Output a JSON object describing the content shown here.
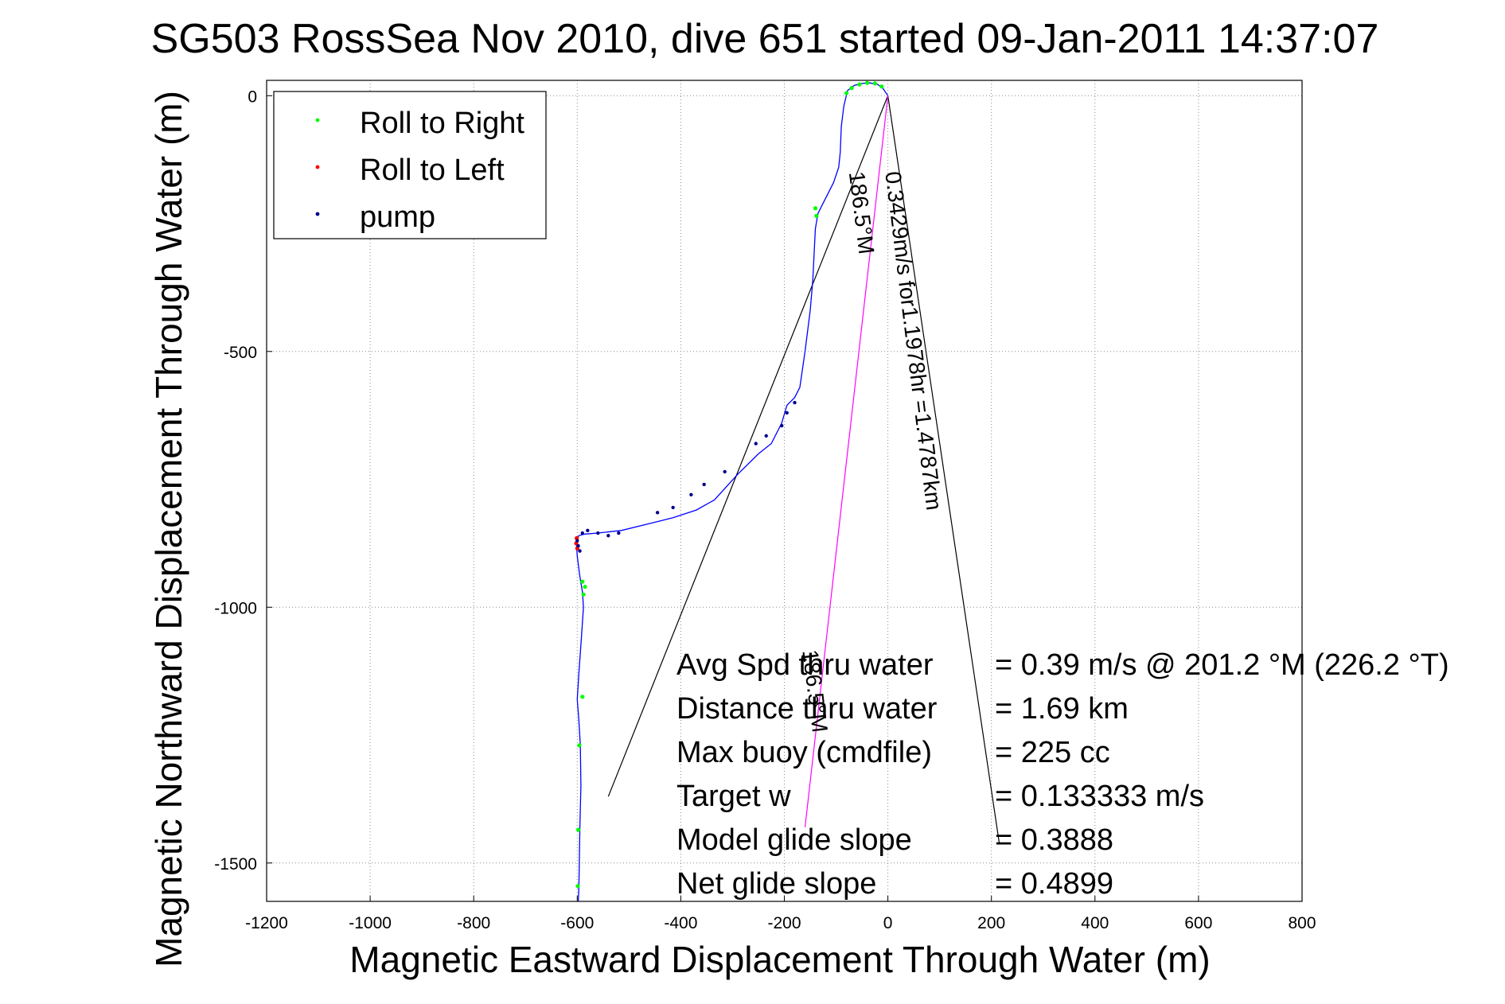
{
  "chart_data": {
    "type": "line",
    "title": "SG503 RossSea Nov 2010, dive 651 started 09-Jan-2011 14:37:07",
    "xlabel": "Magnetic Eastward Displacement Through Water (m)",
    "ylabel": "Magnetic Northward Displacement Through Water (m)",
    "xlim": [
      -1200,
      800
    ],
    "ylim": [
      -1575,
      30
    ],
    "x_ticks": [
      -1200,
      -1000,
      -800,
      -600,
      -400,
      -200,
      0,
      200,
      400,
      600,
      800
    ],
    "y_ticks": [
      0,
      -500,
      -1000,
      -1500
    ],
    "grid": true,
    "legend_position": "top-left",
    "legend": [
      {
        "label": "Roll to Right",
        "color": "#00ff00"
      },
      {
        "label": "Roll to Left",
        "color": "#ff0000"
      },
      {
        "label": "pump",
        "color": "#00008b"
      }
    ],
    "track": {
      "color": "#0000ff",
      "x": [
        0,
        -10,
        -20,
        -35,
        -50,
        -65,
        -78,
        -85,
        -90,
        -92,
        -95,
        -105,
        -120,
        -135,
        -140,
        -142,
        -145,
        -150,
        -160,
        -170,
        -180,
        -195,
        -205,
        -225,
        -250,
        -290,
        -335,
        -370,
        -415,
        -455,
        -515,
        -560,
        -585,
        -597,
        -602,
        -600,
        -595,
        -590,
        -588,
        -592,
        -597,
        -600,
        -597,
        -594,
        -593,
        -595,
        -596,
        -597,
        -598
      ],
      "y": [
        0,
        15,
        22,
        25,
        24,
        20,
        10,
        -20,
        -60,
        -110,
        -140,
        -170,
        -200,
        -230,
        -260,
        -300,
        -360,
        -420,
        -500,
        -570,
        -590,
        -605,
        -640,
        -680,
        -700,
        -740,
        -790,
        -810,
        -825,
        -835,
        -850,
        -855,
        -857,
        -860,
        -870,
        -900,
        -940,
        -970,
        -1000,
        -1060,
        -1130,
        -1180,
        -1220,
        -1270,
        -1350,
        -1430,
        -1500,
        -1550,
        -1575
      ]
    },
    "roll_right_points": {
      "x": [
        -80,
        -70,
        -55,
        -40,
        -25,
        -12,
        -140,
        -138,
        -590,
        -585,
        -588,
        -590,
        -596,
        -598,
        -599
      ],
      "y": [
        5,
        15,
        22,
        25,
        24,
        18,
        -220,
        -235,
        -950,
        -960,
        -975,
        -1175,
        -1270,
        -1435,
        -1545
      ]
    },
    "roll_left_points": {
      "x": [
        -601,
        -602,
        -600
      ],
      "y": [
        -865,
        -875,
        -885
      ]
    },
    "pump_points": {
      "x": [
        -600,
        -598,
        -595,
        -590,
        -580,
        -560,
        -540,
        -520,
        -445,
        -415,
        -380,
        -355,
        -315,
        -255,
        -235,
        -205,
        -195,
        -180
      ],
      "y": [
        -870,
        -880,
        -890,
        -855,
        -850,
        -855,
        -860,
        -855,
        -815,
        -805,
        -780,
        -760,
        -735,
        -680,
        -665,
        -645,
        -620,
        -600
      ]
    },
    "current_line": {
      "color": "#ff00ff",
      "x": [
        0,
        -160
      ],
      "y": [
        0,
        -1430
      ]
    },
    "cone_lines": [
      {
        "color": "#000000",
        "x": [
          0,
          -540
        ],
        "y": [
          0,
          -1370
        ]
      },
      {
        "color": "#000000",
        "x": [
          0,
          215
        ],
        "y": [
          0,
          -1460
        ]
      }
    ],
    "annotations": [
      {
        "text": "0.3429m/s for1.1978hr =1.4787km",
        "x": -5,
        "y": -150,
        "angle": 83
      },
      {
        "text": "186.5°M",
        "x": -75,
        "y": -150,
        "angle": 83
      },
      {
        "text": "186.5°M",
        "x": -165,
        "y": -1085,
        "angle": 83
      }
    ],
    "stats": [
      {
        "label": "Avg Spd thru water",
        "value": "=  0.39 m/s @ 201.2 °M (226.2 °T)"
      },
      {
        "label": "Distance thru water",
        "value": "=  1.69 km"
      },
      {
        "label": "Max buoy (cmdfile)",
        "value": "= 225 cc"
      },
      {
        "label": "Target w",
        "value": "= 0.133333 m/s"
      },
      {
        "label": "Model glide slope",
        "value": "= 0.3888"
      },
      {
        "label": "Net glide slope",
        "value": "= 0.4899"
      }
    ]
  }
}
